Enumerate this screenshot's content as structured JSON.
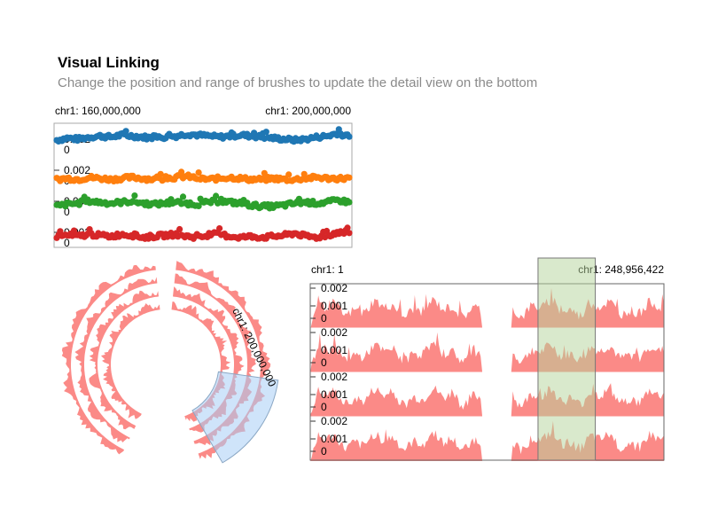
{
  "header": {
    "title": "Visual Linking",
    "subtitle": "Change the position and range of brushes to update the detail view on the bottom"
  },
  "colors": {
    "track1": "#1f77b4",
    "track2": "#ff7f0e",
    "track3": "#2ca02c",
    "track4": "#d62728",
    "area": "#fb8a87",
    "brush_circular": "#a8cdf5",
    "brush_linear": "#b4d49a"
  },
  "chart_data": [
    {
      "type": "scatter",
      "region": "top-left",
      "x_start_label": "chr1: 160,000,000",
      "x_end_label": "chr1: 200,000,000",
      "tracks": [
        {
          "tick_top": "0.002",
          "tick_bottom": "0",
          "color": "#1f77b4",
          "values": [
            0.0012,
            0.0014,
            0.0013,
            0.0015,
            0.0016,
            0.0015,
            0.0017,
            0.0016,
            0.0015,
            0.0014,
            0.0015,
            0.0016,
            0.0018,
            0.0017,
            0.0016,
            0.0015,
            0.0016,
            0.0017,
            0.0016,
            0.0015,
            0.0014,
            0.0013,
            0.0012,
            0.0013,
            0.0015,
            0.0016,
            0.0019,
            0.0014
          ]
        },
        {
          "tick_top": "0.002",
          "tick_bottom": "0",
          "color": "#ff7f0e",
          "values": [
            0.0004,
            0.0005,
            0.0004,
            0.0006,
            0.0005,
            0.0004,
            0.0005,
            0.0006,
            0.0005,
            0.0004,
            0.0005,
            0.0006,
            0.0007,
            0.0005,
            0.0004,
            0.0005,
            0.0006,
            0.0005,
            0.0004,
            0.0004,
            0.0005,
            0.0004,
            0.0004,
            0.0005,
            0.0006,
            0.0005,
            0.0005,
            0.0005
          ]
        },
        {
          "tick_top": "0.002",
          "tick_bottom": "0",
          "color": "#2ca02c",
          "values": [
            0.0008,
            0.001,
            0.0011,
            0.0013,
            0.0012,
            0.0011,
            0.0012,
            0.0013,
            0.0011,
            0.001,
            0.0011,
            0.0012,
            0.0011,
            0.001,
            0.0012,
            0.0013,
            0.0012,
            0.0011,
            0.0009,
            0.0008,
            0.0008,
            0.0009,
            0.0011,
            0.0012,
            0.0011,
            0.0012,
            0.0014,
            0.0012
          ]
        },
        {
          "tick_top": "0.002",
          "tick_bottom": "0",
          "color": "#d62728",
          "values": [
            0.0009,
            0.001,
            0.0009,
            0.0011,
            0.001,
            0.0009,
            0.0011,
            0.001,
            0.0008,
            0.0009,
            0.001,
            0.0011,
            0.0009,
            0.0008,
            0.001,
            0.0011,
            0.0009,
            0.0008,
            0.0009,
            0.0008,
            0.0009,
            0.001,
            0.0012,
            0.0009,
            0.0008,
            0.001,
            0.0013,
            0.0011
          ]
        }
      ]
    },
    {
      "type": "area",
      "layout": "circular",
      "region": "bottom-left",
      "tracks": 4,
      "brush_label": "chr1: 200,000,000"
    },
    {
      "type": "area",
      "region": "bottom-right",
      "x_start_label": "chr1: 1",
      "x_end_label": "chr1: 248,956,422",
      "brush_range_fraction": [
        0.644,
        0.806
      ],
      "tracks": [
        {
          "ticks": [
            "0.002",
            "0.001",
            "0"
          ]
        },
        {
          "ticks": [
            "0.002",
            "0.001",
            "0"
          ]
        },
        {
          "ticks": [
            "0.002",
            "0.001",
            "0"
          ]
        },
        {
          "ticks": [
            "0.002",
            "0.001",
            "0"
          ]
        }
      ]
    }
  ]
}
